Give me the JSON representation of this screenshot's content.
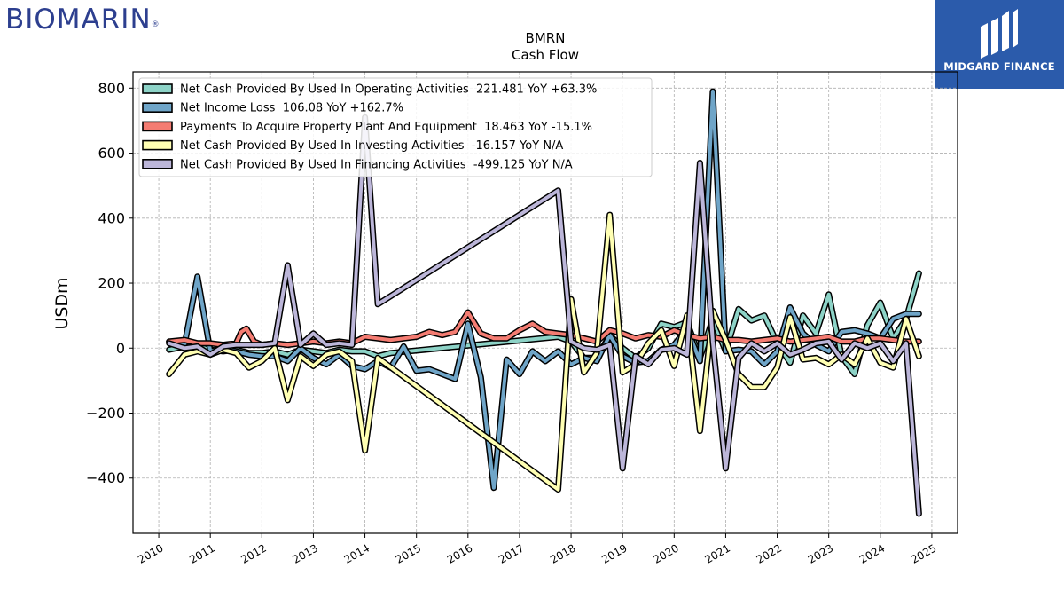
{
  "header": {
    "left_logo": "BIOMARIN",
    "left_logo_mark": "®",
    "right_logo": "MIDGARD FINANCE"
  },
  "chart_data": {
    "type": "line",
    "title": "BMRN",
    "subtitle": "Cash Flow",
    "xlabel": "",
    "ylabel": "USDm",
    "xlim": [
      2009.5,
      2025.5
    ],
    "ylim": [
      -570,
      850
    ],
    "xticks": [
      2010,
      2011,
      2012,
      2013,
      2014,
      2015,
      2016,
      2017,
      2018,
      2019,
      2020,
      2021,
      2022,
      2023,
      2024,
      2025
    ],
    "yticks": [
      -400,
      -200,
      0,
      200,
      400,
      600,
      800
    ],
    "ytick_labels": [
      "−400",
      "−200",
      "0",
      "200",
      "400",
      "600",
      "800"
    ],
    "grid": true,
    "legend_position": "top-left",
    "series": [
      {
        "name": "Net Cash Provided By Used In Operating Activities  221.481 YoY +63.3%",
        "color": "#8dd3c7",
        "points": [
          [
            2010.2,
            -5
          ],
          [
            2010.5,
            5
          ],
          [
            2010.75,
            5
          ],
          [
            2011.0,
            -5
          ],
          [
            2011.25,
            -10
          ],
          [
            2011.5,
            -5
          ],
          [
            2011.75,
            -15
          ],
          [
            2012.0,
            -15
          ],
          [
            2012.25,
            -10
          ],
          [
            2012.5,
            -20
          ],
          [
            2012.75,
            -5
          ],
          [
            2013.0,
            -10
          ],
          [
            2013.25,
            -15
          ],
          [
            2013.5,
            -5
          ],
          [
            2013.75,
            -10
          ],
          [
            2014.0,
            -10
          ],
          [
            2014.25,
            -25
          ],
          [
            2014.5,
            -15
          ],
          [
            2017.75,
            35
          ],
          [
            2018.0,
            20
          ],
          [
            2018.25,
            -30
          ],
          [
            2018.5,
            -30
          ],
          [
            2018.75,
            40
          ],
          [
            2019.0,
            0
          ],
          [
            2019.25,
            -30
          ],
          [
            2019.5,
            0
          ],
          [
            2019.75,
            75
          ],
          [
            2020.0,
            65
          ],
          [
            2020.25,
            80
          ],
          [
            2020.5,
            -30
          ],
          [
            2020.75,
            90
          ],
          [
            2021.0,
            -10
          ],
          [
            2021.25,
            120
          ],
          [
            2021.5,
            85
          ],
          [
            2021.75,
            100
          ],
          [
            2022.0,
            15
          ],
          [
            2022.25,
            -45
          ],
          [
            2022.5,
            100
          ],
          [
            2022.75,
            45
          ],
          [
            2023.0,
            165
          ],
          [
            2023.25,
            -25
          ],
          [
            2023.5,
            -80
          ],
          [
            2023.75,
            70
          ],
          [
            2024.0,
            140
          ],
          [
            2024.25,
            30
          ],
          [
            2024.5,
            90
          ],
          [
            2024.75,
            230
          ]
        ]
      },
      {
        "name": "Net Income Loss  106.08 YoY +162.7%",
        "color": "#6fa5c8",
        "points": [
          [
            2010.2,
            20
          ],
          [
            2010.5,
            10
          ],
          [
            2010.75,
            220
          ],
          [
            2011.0,
            -10
          ],
          [
            2011.25,
            0
          ],
          [
            2011.5,
            -10
          ],
          [
            2011.75,
            -20
          ],
          [
            2012.0,
            -25
          ],
          [
            2012.25,
            -25
          ],
          [
            2012.5,
            -40
          ],
          [
            2012.75,
            0
          ],
          [
            2013.0,
            -30
          ],
          [
            2013.25,
            -50
          ],
          [
            2013.5,
            -20
          ],
          [
            2013.75,
            -55
          ],
          [
            2014.0,
            -65
          ],
          [
            2014.25,
            -40
          ],
          [
            2014.5,
            -60
          ],
          [
            2014.75,
            5
          ],
          [
            2015.0,
            -70
          ],
          [
            2015.25,
            -65
          ],
          [
            2015.5,
            -80
          ],
          [
            2015.75,
            -95
          ],
          [
            2016.0,
            75
          ],
          [
            2016.25,
            -90
          ],
          [
            2016.5,
            -430
          ],
          [
            2016.75,
            -35
          ],
          [
            2017.0,
            -80
          ],
          [
            2017.25,
            -10
          ],
          [
            2017.5,
            -40
          ],
          [
            2017.75,
            -10
          ],
          [
            2018.0,
            -50
          ],
          [
            2018.25,
            -30
          ],
          [
            2018.5,
            -40
          ],
          [
            2018.75,
            40
          ],
          [
            2019.0,
            -25
          ],
          [
            2019.25,
            -45
          ],
          [
            2019.5,
            -40
          ],
          [
            2019.75,
            -5
          ],
          [
            2020.0,
            10
          ],
          [
            2020.25,
            60
          ],
          [
            2020.5,
            -40
          ],
          [
            2020.75,
            790
          ],
          [
            2021.0,
            -10
          ],
          [
            2021.25,
            -5
          ],
          [
            2021.5,
            -10
          ],
          [
            2021.75,
            -50
          ],
          [
            2022.0,
            -10
          ],
          [
            2022.25,
            125
          ],
          [
            2022.5,
            45
          ],
          [
            2022.75,
            10
          ],
          [
            2023.0,
            -10
          ],
          [
            2023.25,
            50
          ],
          [
            2023.5,
            55
          ],
          [
            2023.75,
            45
          ],
          [
            2024.0,
            30
          ],
          [
            2024.25,
            90
          ],
          [
            2024.5,
            105
          ],
          [
            2024.75,
            105
          ]
        ]
      },
      {
        "name": "Payments To Acquire Property Plant And Equipment  18.463 YoY -15.1%",
        "color": "#f47c72",
        "points": [
          [
            2010.2,
            20
          ],
          [
            2010.5,
            25
          ],
          [
            2010.75,
            15
          ],
          [
            2011.0,
            15
          ],
          [
            2011.25,
            10
          ],
          [
            2011.5,
            15
          ],
          [
            2011.6,
            50
          ],
          [
            2011.7,
            60
          ],
          [
            2011.85,
            20
          ],
          [
            2012.0,
            10
          ],
          [
            2012.25,
            15
          ],
          [
            2012.5,
            10
          ],
          [
            2012.75,
            15
          ],
          [
            2013.0,
            20
          ],
          [
            2013.25,
            15
          ],
          [
            2013.5,
            20
          ],
          [
            2013.75,
            15
          ],
          [
            2014.0,
            35
          ],
          [
            2014.25,
            30
          ],
          [
            2014.5,
            25
          ],
          [
            2014.75,
            30
          ],
          [
            2015.0,
            35
          ],
          [
            2015.25,
            50
          ],
          [
            2015.5,
            40
          ],
          [
            2015.75,
            50
          ],
          [
            2016.0,
            110
          ],
          [
            2016.25,
            45
          ],
          [
            2016.5,
            30
          ],
          [
            2016.75,
            30
          ],
          [
            2017.0,
            55
          ],
          [
            2017.25,
            75
          ],
          [
            2017.5,
            50
          ],
          [
            2017.75,
            45
          ],
          [
            2018.0,
            40
          ],
          [
            2018.25,
            30
          ],
          [
            2018.5,
            20
          ],
          [
            2018.75,
            55
          ],
          [
            2019.0,
            45
          ],
          [
            2019.25,
            30
          ],
          [
            2019.5,
            40
          ],
          [
            2019.75,
            35
          ],
          [
            2020.0,
            55
          ],
          [
            2020.25,
            40
          ],
          [
            2020.5,
            30
          ],
          [
            2020.75,
            35
          ],
          [
            2021.0,
            25
          ],
          [
            2021.25,
            25
          ],
          [
            2021.5,
            20
          ],
          [
            2021.75,
            25
          ],
          [
            2022.0,
            30
          ],
          [
            2022.25,
            20
          ],
          [
            2022.5,
            25
          ],
          [
            2022.75,
            30
          ],
          [
            2023.0,
            35
          ],
          [
            2023.25,
            20
          ],
          [
            2023.5,
            20
          ],
          [
            2023.75,
            30
          ],
          [
            2024.0,
            30
          ],
          [
            2024.25,
            25
          ],
          [
            2024.5,
            20
          ],
          [
            2024.75,
            20
          ]
        ]
      },
      {
        "name": "Net Cash Provided By Used In Investing Activities  -16.157 YoY N/A",
        "color": "#ffffb3",
        "points": [
          [
            2010.2,
            -80
          ],
          [
            2010.5,
            -20
          ],
          [
            2010.75,
            -10
          ],
          [
            2011.0,
            -20
          ],
          [
            2011.25,
            -5
          ],
          [
            2011.5,
            -15
          ],
          [
            2011.75,
            -60
          ],
          [
            2012.0,
            -40
          ],
          [
            2012.25,
            0
          ],
          [
            2012.5,
            -160
          ],
          [
            2012.75,
            -25
          ],
          [
            2013.0,
            -55
          ],
          [
            2013.25,
            -20
          ],
          [
            2013.5,
            -10
          ],
          [
            2013.75,
            -40
          ],
          [
            2014.0,
            -315
          ],
          [
            2014.25,
            -30
          ],
          [
            2017.75,
            -435
          ],
          [
            2018.0,
            150
          ],
          [
            2018.25,
            -75
          ],
          [
            2018.5,
            -15
          ],
          [
            2018.75,
            410
          ],
          [
            2019.0,
            -75
          ],
          [
            2019.25,
            -50
          ],
          [
            2019.5,
            15
          ],
          [
            2019.75,
            55
          ],
          [
            2020.0,
            -55
          ],
          [
            2020.25,
            100
          ],
          [
            2020.5,
            -255
          ],
          [
            2020.75,
            115
          ],
          [
            2021.0,
            25
          ],
          [
            2021.25,
            -80
          ],
          [
            2021.5,
            -120
          ],
          [
            2021.75,
            -120
          ],
          [
            2022.0,
            -60
          ],
          [
            2022.25,
            95
          ],
          [
            2022.5,
            -35
          ],
          [
            2022.75,
            -30
          ],
          [
            2023.0,
            -50
          ],
          [
            2023.25,
            -20
          ],
          [
            2023.5,
            -50
          ],
          [
            2023.75,
            30
          ],
          [
            2024.0,
            -45
          ],
          [
            2024.25,
            -60
          ],
          [
            2024.5,
            90
          ],
          [
            2024.75,
            -25
          ]
        ]
      },
      {
        "name": "Net Cash Provided By Used In Financing Activities  -499.125 YoY N/A",
        "color": "#bcb6d9",
        "points": [
          [
            2010.2,
            15
          ],
          [
            2010.5,
            0
          ],
          [
            2010.75,
            5
          ],
          [
            2011.0,
            -20
          ],
          [
            2011.25,
            5
          ],
          [
            2011.5,
            10
          ],
          [
            2011.75,
            10
          ],
          [
            2012.0,
            10
          ],
          [
            2012.25,
            15
          ],
          [
            2012.5,
            255
          ],
          [
            2012.75,
            10
          ],
          [
            2013.0,
            45
          ],
          [
            2013.25,
            10
          ],
          [
            2013.5,
            15
          ],
          [
            2013.75,
            10
          ],
          [
            2014.0,
            710
          ],
          [
            2014.25,
            135
          ],
          [
            2017.75,
            485
          ],
          [
            2018.0,
            20
          ],
          [
            2018.25,
            0
          ],
          [
            2018.5,
            -5
          ],
          [
            2018.75,
            10
          ],
          [
            2019.0,
            -370
          ],
          [
            2019.25,
            -25
          ],
          [
            2019.5,
            -50
          ],
          [
            2019.75,
            -5
          ],
          [
            2020.0,
            0
          ],
          [
            2020.25,
            -20
          ],
          [
            2020.5,
            570
          ],
          [
            2020.75,
            20
          ],
          [
            2021.0,
            -370
          ],
          [
            2021.25,
            -30
          ],
          [
            2021.5,
            15
          ],
          [
            2021.75,
            -10
          ],
          [
            2022.0,
            15
          ],
          [
            2022.25,
            -20
          ],
          [
            2022.5,
            -5
          ],
          [
            2022.75,
            15
          ],
          [
            2023.0,
            20
          ],
          [
            2023.25,
            -35
          ],
          [
            2023.5,
            15
          ],
          [
            2023.75,
            0
          ],
          [
            2024.0,
            15
          ],
          [
            2024.25,
            -40
          ],
          [
            2024.5,
            15
          ],
          [
            2024.75,
            -510
          ]
        ]
      }
    ]
  }
}
